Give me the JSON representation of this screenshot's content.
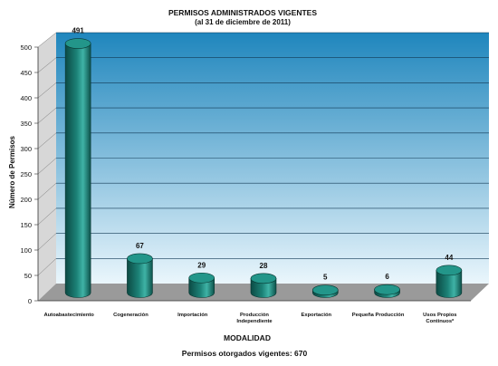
{
  "chart_data": {
    "type": "bar",
    "title": "PERMISOS ADMINISTRADOS VIGENTES",
    "subtitle": "(al 31 de diciembre de 2011)",
    "xlabel": "MODALIDAD",
    "ylabel": "Número de Permisos",
    "ylim": [
      0,
      500
    ],
    "yticks": [
      0,
      50,
      100,
      150,
      200,
      250,
      300,
      350,
      400,
      450,
      500
    ],
    "grid": true,
    "categories": [
      [
        "Autoabastecimiento"
      ],
      [
        "Cogeneración"
      ],
      [
        "Importación"
      ],
      [
        "Producción",
        "Independiente"
      ],
      [
        "Exportación"
      ],
      [
        "Pequeña Producción"
      ],
      [
        "Usos Propios",
        "Continuos*"
      ]
    ],
    "values": [
      491,
      67,
      29,
      28,
      5,
      6,
      44
    ],
    "footer": "Permisos otorgados vigentes: 670",
    "colors": {
      "bar_dark": "#0c4a44",
      "bar_mid": "#1c8277",
      "bar_light": "#3fb3a6",
      "wall_top": "#1f86bd",
      "wall_bottom": "#eaf6fc",
      "floor": "#9a9a9a"
    }
  }
}
